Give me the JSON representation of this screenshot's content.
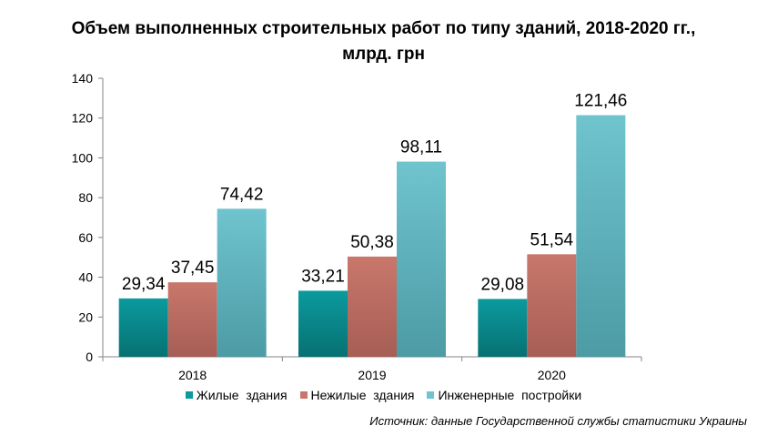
{
  "title_line1": "Объем выполненных строительных работ по типу зданий, 2018-2020 гг.,",
  "title_line2": "млрд. грн",
  "source": "Источник: данные Государственной службы статистики Украины",
  "chart_data": {
    "type": "bar",
    "categories": [
      "2018",
      "2019",
      "2020"
    ],
    "series": [
      {
        "name": "Жилые  здания",
        "values": [
          29.34,
          33.21,
          29.08
        ],
        "labels": [
          "29,34",
          "33,21",
          "29,08"
        ],
        "color": "#0B9A9E",
        "color_dark": "#077173"
      },
      {
        "name": "Нежилые  здания",
        "values": [
          37.45,
          50.38,
          51.54
        ],
        "labels": [
          "37,45",
          "50,38",
          "51,54"
        ],
        "color": "#C9776B",
        "color_dark": "#A65E55"
      },
      {
        "name": "Инженерные  постройки",
        "values": [
          74.42,
          98.11,
          121.46
        ],
        "labels": [
          "74,42",
          "98,11",
          "121,46"
        ],
        "color": "#6FC4CE",
        "color_dark": "#4C9BA5"
      }
    ],
    "ylim": [
      0,
      140
    ],
    "yticks": [
      "0",
      "20",
      "40",
      "60",
      "80",
      "100",
      "120",
      "140"
    ],
    "grid": false,
    "legend": "bottom"
  }
}
